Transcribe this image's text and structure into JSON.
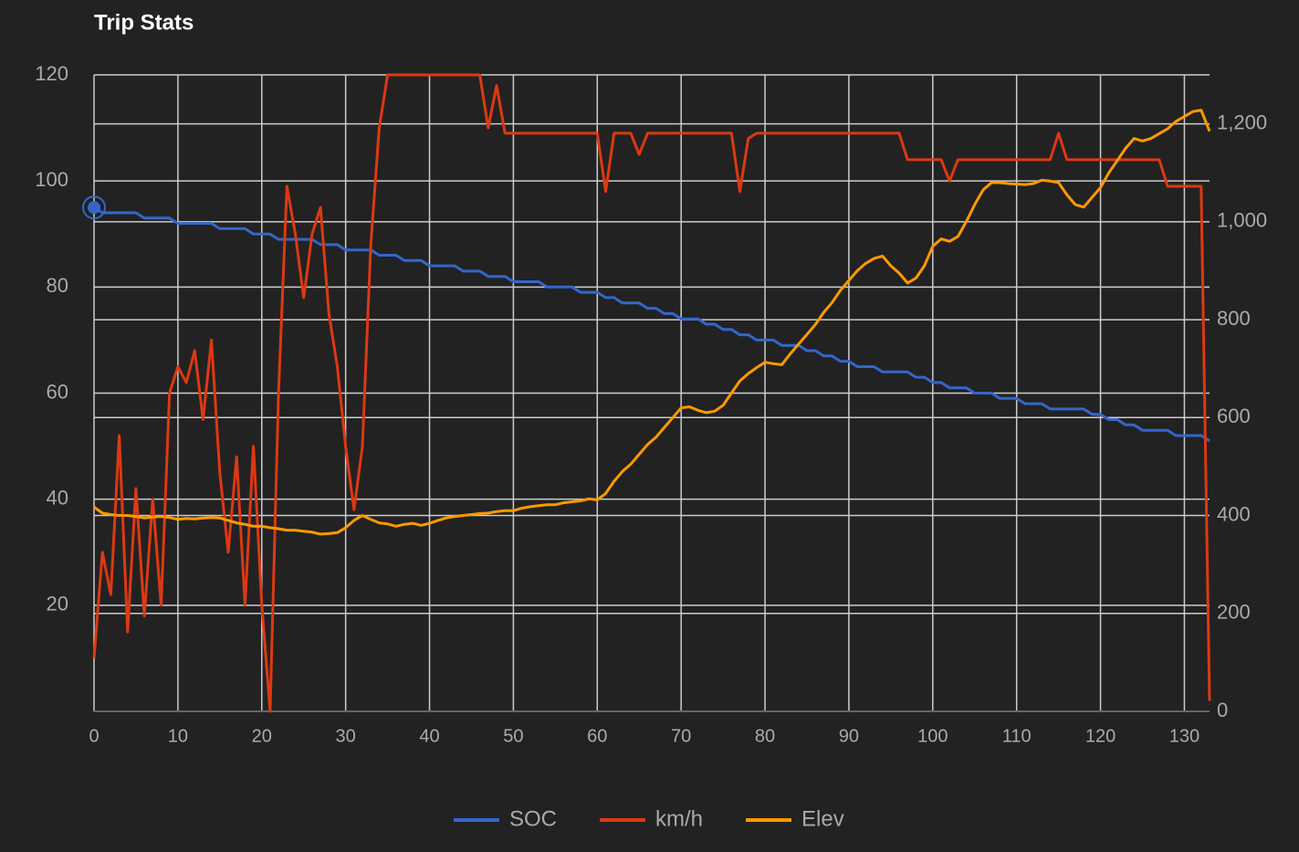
{
  "chart_data": {
    "type": "line",
    "title": "Trip Stats",
    "x": [
      0,
      1,
      2,
      3,
      4,
      5,
      6,
      7,
      8,
      9,
      10,
      11,
      12,
      13,
      14,
      15,
      16,
      17,
      18,
      19,
      20,
      21,
      22,
      23,
      24,
      25,
      26,
      27,
      28,
      29,
      30,
      31,
      32,
      33,
      34,
      35,
      36,
      37,
      38,
      39,
      40,
      41,
      42,
      43,
      44,
      45,
      46,
      47,
      48,
      49,
      50,
      51,
      52,
      53,
      54,
      55,
      56,
      57,
      58,
      59,
      60,
      61,
      62,
      63,
      64,
      65,
      66,
      67,
      68,
      69,
      70,
      71,
      72,
      73,
      74,
      75,
      76,
      77,
      78,
      79,
      80,
      81,
      82,
      83,
      84,
      85,
      86,
      87,
      88,
      89,
      90,
      91,
      92,
      93,
      94,
      95,
      96,
      97,
      98,
      99,
      100,
      101,
      102,
      103,
      104,
      105,
      106,
      107,
      108,
      109,
      110,
      111,
      112,
      113,
      114,
      115,
      116,
      117,
      118,
      119,
      120,
      121,
      122,
      123,
      124,
      125,
      126,
      127,
      128,
      129,
      130,
      131,
      132,
      133
    ],
    "series": [
      {
        "name": "SOC",
        "color": "#3366cc",
        "values": [
          95,
          94,
          94,
          94,
          94,
          94,
          93,
          93,
          93,
          93,
          92,
          92,
          92,
          92,
          92,
          91,
          91,
          91,
          91,
          90,
          90,
          90,
          89,
          89,
          89,
          89,
          89,
          88,
          88,
          88,
          87,
          87,
          87,
          87,
          86,
          86,
          86,
          85,
          85,
          85,
          84,
          84,
          84,
          84,
          83,
          83,
          83,
          82,
          82,
          82,
          81,
          81,
          81,
          81,
          80,
          80,
          80,
          80,
          79,
          79,
          79,
          78,
          78,
          77,
          77,
          77,
          76,
          76,
          75,
          75,
          74,
          74,
          74,
          73,
          73,
          72,
          72,
          71,
          71,
          70,
          70,
          70,
          69,
          69,
          69,
          68,
          68,
          67,
          67,
          66,
          66,
          65,
          65,
          65,
          64,
          64,
          64,
          64,
          63,
          63,
          62,
          62,
          61,
          61,
          61,
          60,
          60,
          60,
          59,
          59,
          59,
          58,
          58,
          58,
          57,
          57,
          57,
          57,
          57,
          56,
          56,
          55,
          55,
          54,
          54,
          53,
          53,
          53,
          53,
          52,
          52,
          52,
          52,
          51
        ]
      },
      {
        "name": "km/h",
        "color": "#dc3912",
        "values": [
          10,
          30,
          22,
          52,
          15,
          42,
          18,
          40,
          20,
          60,
          65,
          62,
          68,
          55,
          70,
          45,
          30,
          48,
          20,
          50,
          20,
          0,
          60,
          99,
          90,
          78,
          90,
          95,
          75,
          65,
          50,
          38,
          50,
          88,
          110,
          120,
          120,
          120,
          120,
          120,
          120,
          120,
          120,
          120,
          120,
          120,
          120,
          110,
          118,
          109,
          109,
          109,
          109,
          109,
          109,
          109,
          109,
          109,
          109,
          109,
          109,
          98,
          109,
          109,
          109,
          105,
          109,
          109,
          109,
          109,
          109,
          109,
          109,
          109,
          109,
          109,
          109,
          98,
          108,
          109,
          109,
          109,
          109,
          109,
          109,
          109,
          109,
          109,
          109,
          109,
          109,
          109,
          109,
          109,
          109,
          109,
          109,
          104,
          104,
          104,
          104,
          104,
          100,
          104,
          104,
          104,
          104,
          104,
          104,
          104,
          104,
          104,
          104,
          104,
          104,
          109,
          104,
          104,
          104,
          104,
          104,
          104,
          104,
          104,
          104,
          104,
          104,
          104,
          99,
          99,
          99,
          99,
          99,
          2
        ]
      },
      {
        "name": "Elev",
        "color": "#ff9900",
        "axis": "y2",
        "values": [
          417,
          405,
          402,
          400,
          400,
          398,
          395,
          397,
          398,
          396,
          392,
          394,
          393,
          395,
          396,
          395,
          390,
          385,
          382,
          378,
          378,
          375,
          373,
          370,
          370,
          368,
          366,
          362,
          363,
          365,
          375,
          390,
          400,
          392,
          385,
          383,
          378,
          382,
          384,
          380,
          384,
          390,
          395,
          398,
          400,
          402,
          404,
          405,
          408,
          410,
          410,
          415,
          418,
          420,
          422,
          422,
          426,
          428,
          430,
          434,
          432,
          445,
          470,
          490,
          505,
          525,
          545,
          560,
          580,
          600,
          620,
          622,
          615,
          610,
          613,
          625,
          650,
          675,
          690,
          702,
          713,
          710,
          708,
          730,
          750,
          770,
          790,
          815,
          835,
          860,
          880,
          900,
          915,
          925,
          930,
          910,
          895,
          875,
          885,
          910,
          950,
          965,
          960,
          970,
          1000,
          1035,
          1065,
          1080,
          1080,
          1078,
          1077,
          1076,
          1078,
          1085,
          1083,
          1080,
          1055,
          1035,
          1030,
          1050,
          1070,
          1100,
          1125,
          1150,
          1170,
          1165,
          1170,
          1180,
          1190,
          1205,
          1215,
          1225,
          1228,
          1185
        ]
      }
    ],
    "xlim": [
      0,
      133
    ],
    "xticks": [
      0,
      10,
      20,
      30,
      40,
      50,
      60,
      70,
      80,
      90,
      100,
      110,
      120,
      130
    ],
    "ylim": [
      0,
      120
    ],
    "yticks": [
      20,
      40,
      60,
      80,
      100,
      120
    ],
    "y2lim": [
      0,
      1300
    ],
    "y2ticks": [
      0,
      200,
      400,
      600,
      800,
      {
        "value": 1000,
        "label": "1,000"
      },
      {
        "value": 1200,
        "label": "1,200"
      }
    ],
    "grid": true,
    "legend": "bottom"
  }
}
